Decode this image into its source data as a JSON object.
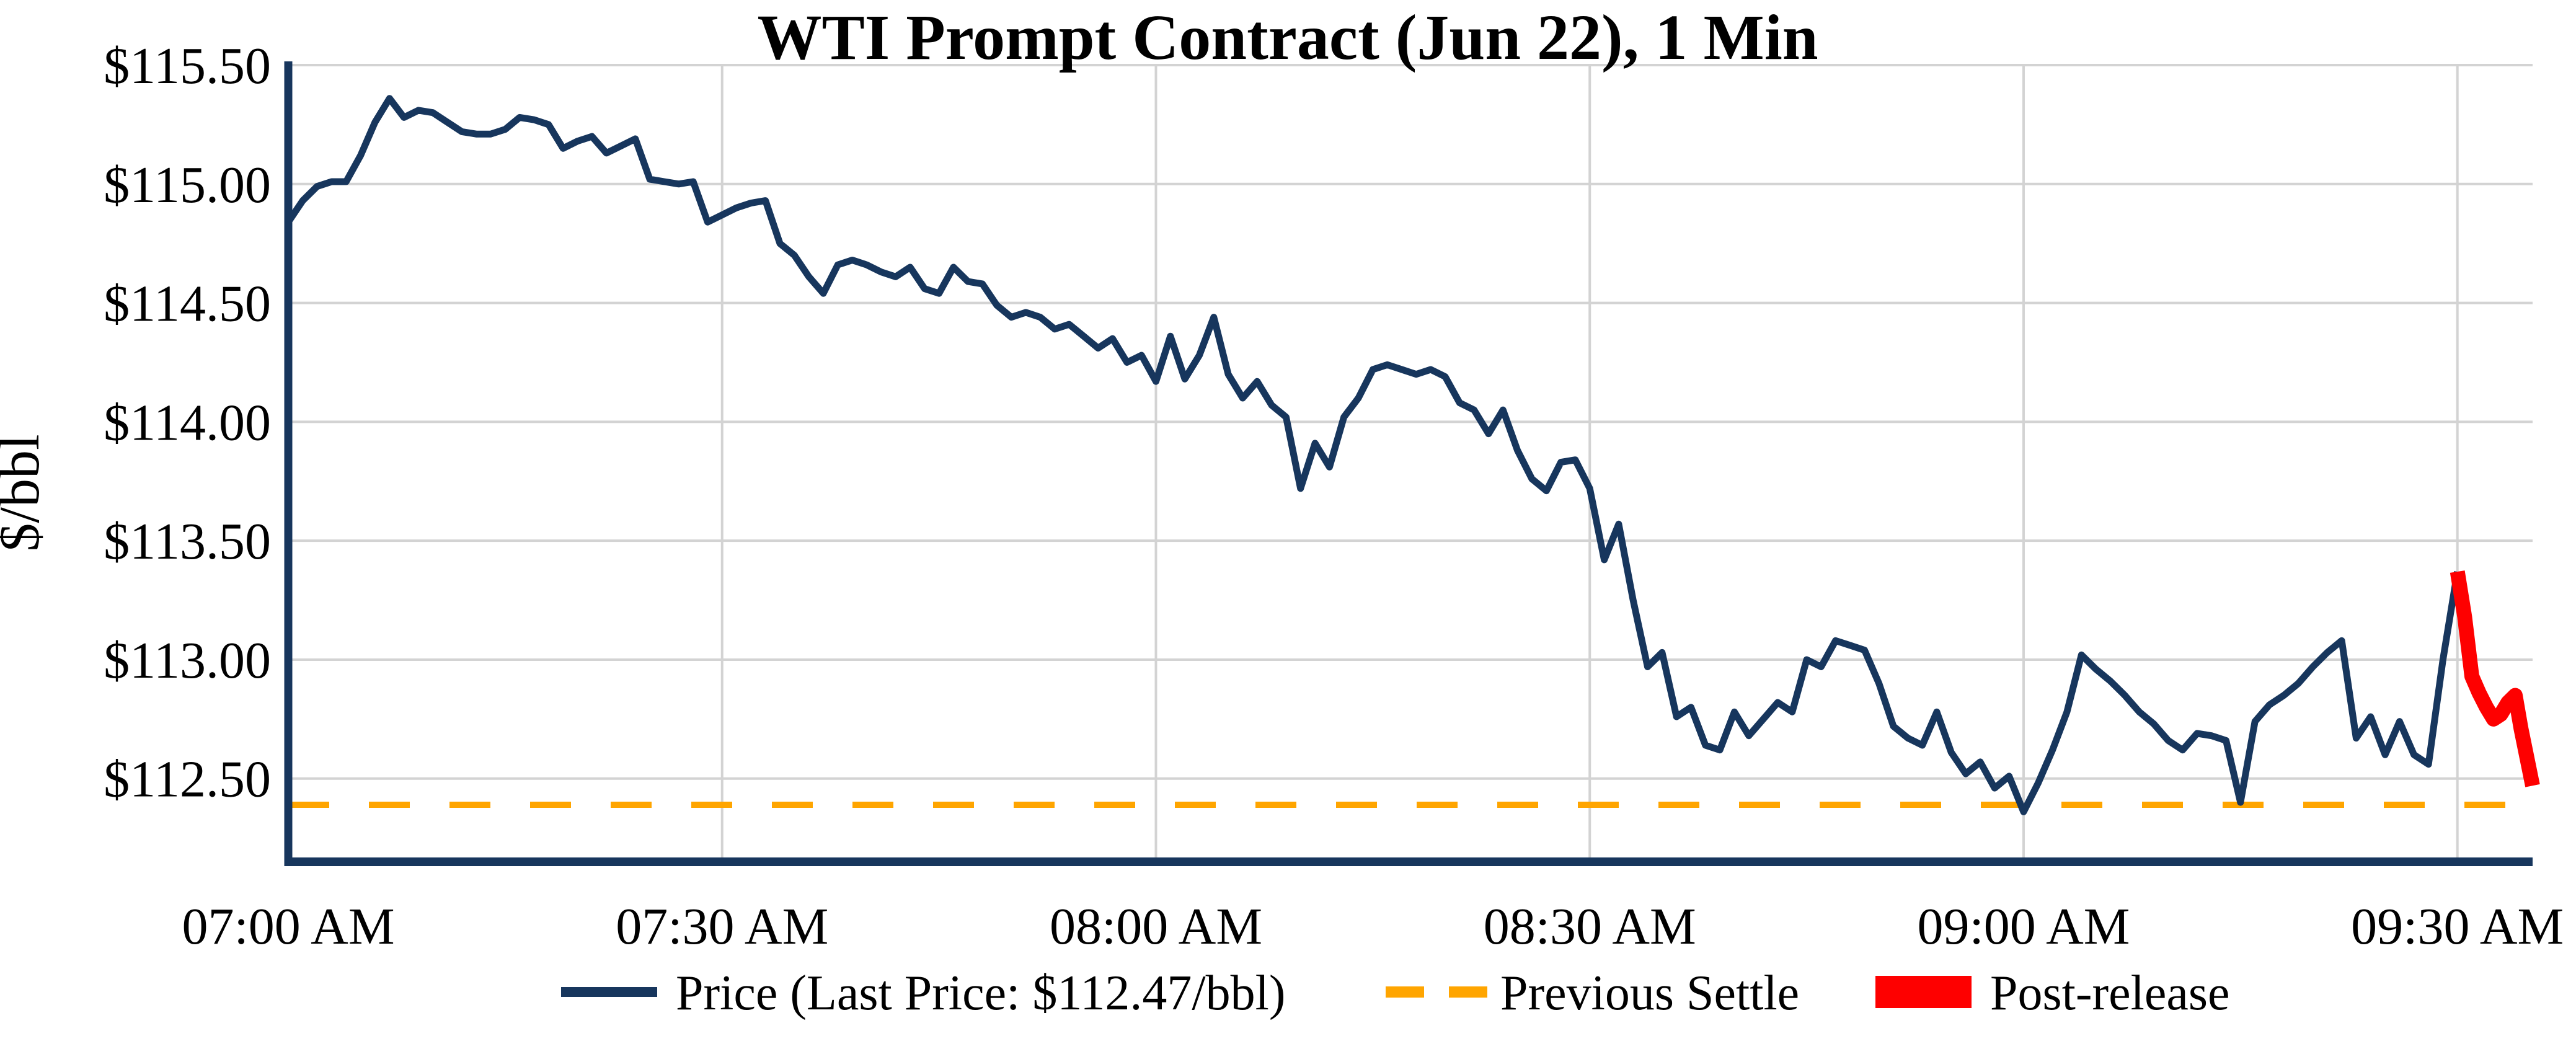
{
  "chart_data": {
    "type": "line",
    "title": "WTI Prompt Contract (Jun 22), 1 Min",
    "xlabel": "",
    "ylabel": "$/bbl",
    "x_unit": "minutes after 07:00 AM",
    "xlim": [
      0,
      155.2
    ],
    "ylim": [
      112.15,
      115.5
    ],
    "grid": true,
    "legend_position": "bottom",
    "last_price": 112.47,
    "previous_settle": 112.39,
    "x_ticks": {
      "values": [
        0,
        30,
        60,
        90,
        120,
        150
      ],
      "labels": [
        "07:00 AM",
        "07:30 AM",
        "08:00 AM",
        "08:30 AM",
        "09:00 AM",
        "09:30 AM"
      ]
    },
    "y_ticks": {
      "values": [
        115.5,
        115.0,
        114.5,
        114.0,
        113.5,
        113.0,
        112.5
      ],
      "labels": [
        "$115.50",
        "$115.00",
        "$114.50",
        "$114.00",
        "$113.50",
        "$113.00",
        "$112.50"
      ]
    },
    "legend": [
      {
        "label": "Price (Last Price: $112.47/bbl)",
        "color": "#17365d",
        "style": "line"
      },
      {
        "label": "Previous Settle",
        "color": "#ffa500",
        "style": "dashed"
      },
      {
        "label": "Post-release",
        "color": "#fe0000",
        "style": "thick"
      }
    ],
    "series": [
      {
        "name": "Price",
        "color": "#17365d",
        "width": 11,
        "points": [
          [
            0,
            114.84
          ],
          [
            1,
            114.93
          ],
          [
            2,
            114.99
          ],
          [
            3,
            115.01
          ],
          [
            4,
            115.01
          ],
          [
            5,
            115.12
          ],
          [
            6,
            115.26
          ],
          [
            7,
            115.36
          ],
          [
            8,
            115.28
          ],
          [
            9,
            115.31
          ],
          [
            10,
            115.3
          ],
          [
            11,
            115.26
          ],
          [
            12,
            115.22
          ],
          [
            13,
            115.21
          ],
          [
            14,
            115.21
          ],
          [
            15,
            115.23
          ],
          [
            16,
            115.28
          ],
          [
            17,
            115.27
          ],
          [
            18,
            115.25
          ],
          [
            19,
            115.15
          ],
          [
            20,
            115.18
          ],
          [
            21,
            115.2
          ],
          [
            22,
            115.13
          ],
          [
            23,
            115.16
          ],
          [
            24,
            115.19
          ],
          [
            25,
            115.02
          ],
          [
            26,
            115.01
          ],
          [
            27,
            115.0
          ],
          [
            28,
            115.01
          ],
          [
            29,
            114.84
          ],
          [
            30,
            114.87
          ],
          [
            31,
            114.9
          ],
          [
            32,
            114.92
          ],
          [
            33,
            114.93
          ],
          [
            34,
            114.75
          ],
          [
            35,
            114.7
          ],
          [
            36,
            114.61
          ],
          [
            37,
            114.54
          ],
          [
            38,
            114.66
          ],
          [
            39,
            114.68
          ],
          [
            40,
            114.66
          ],
          [
            41,
            114.63
          ],
          [
            42,
            114.61
          ],
          [
            43,
            114.65
          ],
          [
            44,
            114.56
          ],
          [
            45,
            114.54
          ],
          [
            46,
            114.65
          ],
          [
            47,
            114.59
          ],
          [
            48,
            114.58
          ],
          [
            49,
            114.49
          ],
          [
            50,
            114.44
          ],
          [
            51,
            114.46
          ],
          [
            52,
            114.44
          ],
          [
            53,
            114.39
          ],
          [
            54,
            114.41
          ],
          [
            55,
            114.36
          ],
          [
            56,
            114.31
          ],
          [
            57,
            114.35
          ],
          [
            58,
            114.25
          ],
          [
            59,
            114.28
          ],
          [
            60,
            114.17
          ],
          [
            61,
            114.36
          ],
          [
            62,
            114.18
          ],
          [
            63,
            114.28
          ],
          [
            64,
            114.44
          ],
          [
            65,
            114.2
          ],
          [
            66,
            114.1
          ],
          [
            67,
            114.17
          ],
          [
            68,
            114.07
          ],
          [
            69,
            114.02
          ],
          [
            70,
            113.72
          ],
          [
            71,
            113.91
          ],
          [
            72,
            113.81
          ],
          [
            73,
            114.02
          ],
          [
            74,
            114.1
          ],
          [
            75,
            114.22
          ],
          [
            76,
            114.24
          ],
          [
            77,
            114.22
          ],
          [
            78,
            114.2
          ],
          [
            79,
            114.22
          ],
          [
            80,
            114.19
          ],
          [
            81,
            114.08
          ],
          [
            82,
            114.05
          ],
          [
            83,
            113.95
          ],
          [
            84,
            114.05
          ],
          [
            85,
            113.88
          ],
          [
            86,
            113.76
          ],
          [
            87,
            113.71
          ],
          [
            88,
            113.83
          ],
          [
            89,
            113.84
          ],
          [
            90,
            113.72
          ],
          [
            91,
            113.42
          ],
          [
            92,
            113.57
          ],
          [
            93,
            113.25
          ],
          [
            94,
            112.97
          ],
          [
            95,
            113.03
          ],
          [
            96,
            112.76
          ],
          [
            97,
            112.8
          ],
          [
            98,
            112.64
          ],
          [
            99,
            112.62
          ],
          [
            100,
            112.78
          ],
          [
            101,
            112.68
          ],
          [
            102,
            112.75
          ],
          [
            103,
            112.82
          ],
          [
            104,
            112.78
          ],
          [
            105,
            113.0
          ],
          [
            106,
            112.97
          ],
          [
            107,
            113.08
          ],
          [
            108,
            113.06
          ],
          [
            109,
            113.04
          ],
          [
            110,
            112.9
          ],
          [
            111,
            112.72
          ],
          [
            112,
            112.67
          ],
          [
            113,
            112.64
          ],
          [
            114,
            112.78
          ],
          [
            115,
            112.61
          ],
          [
            116,
            112.52
          ],
          [
            117,
            112.57
          ],
          [
            118,
            112.46
          ],
          [
            119,
            112.51
          ],
          [
            120,
            112.36
          ],
          [
            121,
            112.48
          ],
          [
            122,
            112.62
          ],
          [
            123,
            112.78
          ],
          [
            124,
            113.02
          ],
          [
            125,
            112.96
          ],
          [
            126,
            112.91
          ],
          [
            127,
            112.85
          ],
          [
            128,
            112.78
          ],
          [
            129,
            112.73
          ],
          [
            130,
            112.66
          ],
          [
            131,
            112.62
          ],
          [
            132,
            112.69
          ],
          [
            133,
            112.68
          ],
          [
            134,
            112.66
          ],
          [
            135,
            112.4
          ],
          [
            136,
            112.74
          ],
          [
            137,
            112.81
          ],
          [
            138,
            112.85
          ],
          [
            139,
            112.9
          ],
          [
            140,
            112.97
          ],
          [
            141,
            113.03
          ],
          [
            142,
            113.08
          ],
          [
            143,
            112.67
          ],
          [
            144,
            112.76
          ],
          [
            145,
            112.6
          ],
          [
            146,
            112.74
          ],
          [
            147,
            112.6
          ],
          [
            148,
            112.56
          ],
          [
            149,
            113.0
          ],
          [
            150,
            113.37
          ]
        ]
      },
      {
        "name": "Post-release",
        "color": "#fe0000",
        "width": 24,
        "points": [
          [
            150,
            113.37
          ],
          [
            150.5,
            113.18
          ],
          [
            151,
            112.93
          ],
          [
            151.5,
            112.86
          ],
          [
            152,
            112.8
          ],
          [
            152.5,
            112.75
          ],
          [
            153,
            112.77
          ],
          [
            153.5,
            112.82
          ],
          [
            154,
            112.85
          ],
          [
            154.4,
            112.71
          ],
          [
            154.9,
            112.56
          ],
          [
            155.2,
            112.47
          ]
        ]
      }
    ]
  },
  "colors": {
    "price_line": "#17365d",
    "post_release": "#fe0000",
    "previous_settle": "#ffa500",
    "gridline": "#d3d3d3",
    "axis": "#17365d",
    "text": "#000000",
    "background": "#ffffff"
  }
}
